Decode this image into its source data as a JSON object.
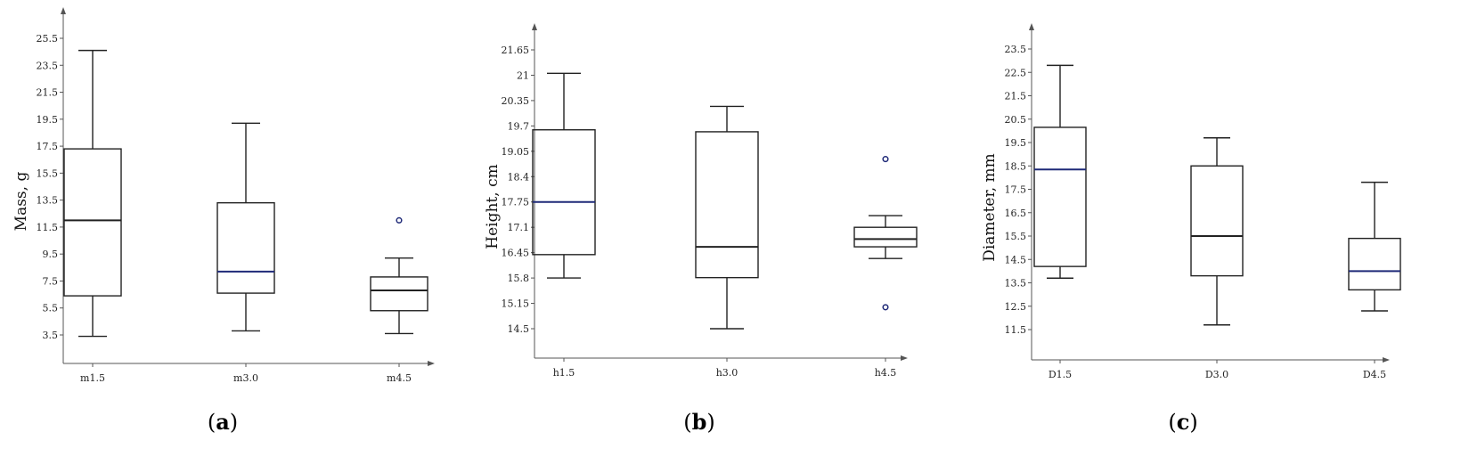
{
  "colors": {
    "box": "#222222",
    "median_accent": "#1f2a78",
    "outlier": "#1f2a78",
    "axis": "#555555"
  },
  "chart_data": [
    {
      "type": "box",
      "caption_letter": "a",
      "ylabel": "Mass, g",
      "yticks": [
        "3.5",
        "5.5",
        "7.5",
        "9.5",
        "11.5",
        "13.5",
        "15.5",
        "17.5",
        "19.5",
        "21.5",
        "23.5",
        "25.5"
      ],
      "ylim": [
        1.5,
        27.0
      ],
      "categories": [
        "m1.5",
        "m3.0",
        "m4.5"
      ],
      "boxes": [
        {
          "whislo": 3.4,
          "q1": 6.4,
          "med": 12.0,
          "q3": 17.3,
          "whishi": 24.6,
          "median_color": "#222222",
          "fliers": []
        },
        {
          "whislo": 3.8,
          "q1": 6.6,
          "med": 8.2,
          "q3": 13.3,
          "whishi": 19.2,
          "median_color": "#1f2a78",
          "fliers": []
        },
        {
          "whislo": 3.6,
          "q1": 5.3,
          "med": 6.8,
          "q3": 7.8,
          "whishi": 9.2,
          "median_color": "#222222",
          "fliers": [
            12.0
          ]
        }
      ]
    },
    {
      "type": "box",
      "caption_letter": "b",
      "ylabel": "Height, cm",
      "yticks": [
        "14.5",
        "15.15",
        "15.8",
        "16.45",
        "17.1",
        "17.75",
        "18.4",
        "19.05",
        "19.7",
        "20.35",
        "21",
        "21.65"
      ],
      "ylim": [
        13.85,
        22.3
      ],
      "categories": [
        "h1.5",
        "h3.0",
        "h4.5"
      ],
      "boxes": [
        {
          "whislo": 15.8,
          "q1": 16.4,
          "med": 17.75,
          "q3": 19.6,
          "whishi": 21.05,
          "median_color": "#1f2a78",
          "fliers": []
        },
        {
          "whislo": 14.5,
          "q1": 15.81,
          "med": 16.6,
          "q3": 19.55,
          "whishi": 20.2,
          "median_color": "#222222",
          "fliers": []
        },
        {
          "whislo": 16.3,
          "q1": 16.6,
          "med": 16.8,
          "q3": 17.1,
          "whishi": 17.4,
          "median_color": "#222222",
          "fliers": [
            18.85,
            15.05
          ]
        }
      ]
    },
    {
      "type": "box",
      "caption_letter": "c",
      "ylabel": "Diameter, mm",
      "yticks": [
        "11.5",
        "12.5",
        "13.5",
        "14.5",
        "15.5",
        "16.5",
        "17.5",
        "18.5",
        "19.5",
        "20.5",
        "21.5",
        "22.5",
        "23.5"
      ],
      "ylim": [
        10.5,
        24.5
      ],
      "categories": [
        "D1.5",
        "D3.0",
        "D4.5"
      ],
      "boxes": [
        {
          "whislo": 13.7,
          "q1": 14.2,
          "med": 18.35,
          "q3": 20.15,
          "whishi": 22.8,
          "median_color": "#1f2a78",
          "fliers": []
        },
        {
          "whislo": 11.7,
          "q1": 13.8,
          "med": 15.5,
          "q3": 18.5,
          "whishi": 19.7,
          "median_color": "#222222",
          "fliers": []
        },
        {
          "whislo": 12.3,
          "q1": 13.2,
          "med": 14.0,
          "q3": 15.4,
          "whishi": 17.8,
          "median_color": "#1f2a78",
          "fliers": []
        }
      ]
    }
  ]
}
